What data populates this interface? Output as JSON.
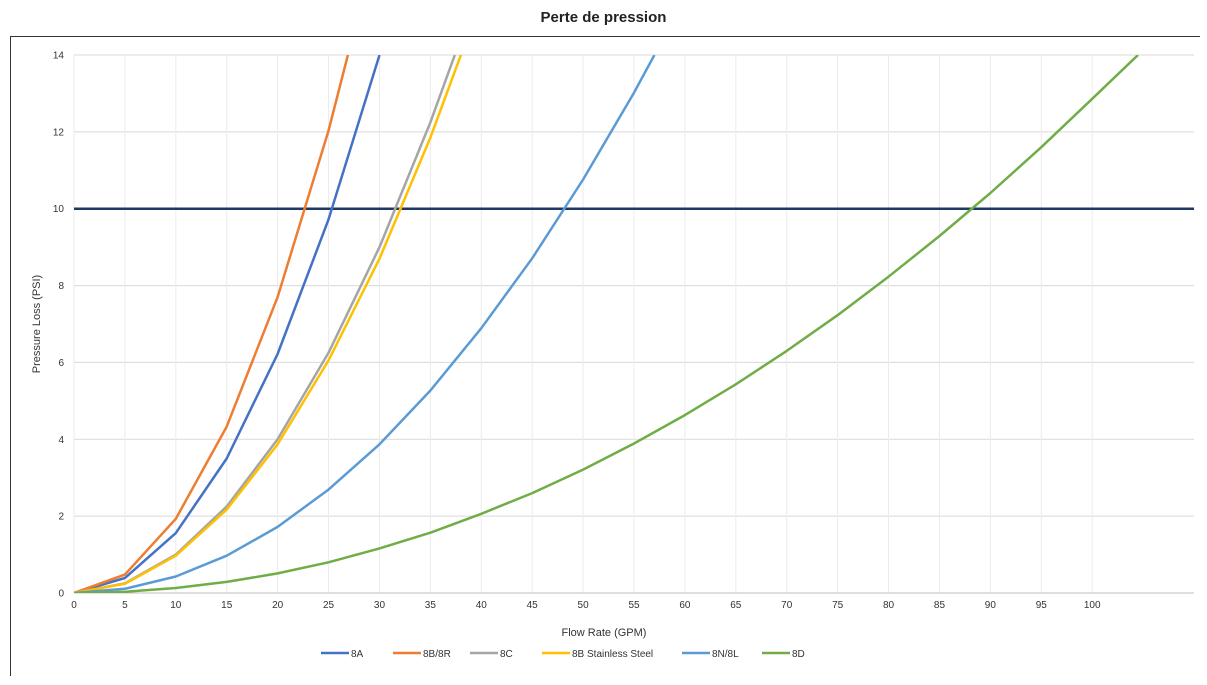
{
  "chart_data": {
    "type": "line",
    "title": "Perte de pression",
    "xlabel": "Flow Rate (GPM)",
    "ylabel": "Pressure Loss (PSI)",
    "xlim": [
      0,
      110
    ],
    "ylim": [
      0,
      14
    ],
    "x_ticks": [
      0,
      5,
      10,
      15,
      20,
      25,
      30,
      35,
      40,
      45,
      50,
      55,
      60,
      65,
      70,
      75,
      80,
      85,
      90,
      95,
      100
    ],
    "y_ticks": [
      0,
      2,
      4,
      6,
      8,
      10,
      12,
      14
    ],
    "grid": true,
    "legend_position": "bottom",
    "reference_line": {
      "y": 10,
      "color": "#203864"
    },
    "series": [
      {
        "name": "8A",
        "color": "#4472C4",
        "points": [
          [
            0,
            0
          ],
          [
            5,
            0.39
          ],
          [
            10,
            1.56
          ],
          [
            15,
            3.5
          ],
          [
            20,
            6.22
          ],
          [
            25,
            9.72
          ],
          [
            30,
            14
          ]
        ]
      },
      {
        "name": "8B/8R",
        "color": "#ED7D31",
        "points": [
          [
            0,
            0
          ],
          [
            5,
            0.48
          ],
          [
            10,
            1.93
          ],
          [
            15,
            4.33
          ],
          [
            20,
            7.7
          ],
          [
            25,
            12.03
          ],
          [
            26.9,
            14
          ]
        ]
      },
      {
        "name": "8C",
        "color": "#A5A5A5",
        "points": [
          [
            0,
            0
          ],
          [
            5,
            0.25
          ],
          [
            10,
            1.0
          ],
          [
            15,
            2.25
          ],
          [
            20,
            4.0
          ],
          [
            25,
            6.25
          ],
          [
            30,
            9.0
          ],
          [
            35,
            12.25
          ],
          [
            37.4,
            14
          ]
        ]
      },
      {
        "name": "8B Stainless Steel",
        "color": "#FFC000",
        "points": [
          [
            0,
            0
          ],
          [
            5,
            0.24
          ],
          [
            10,
            0.97
          ],
          [
            15,
            2.17
          ],
          [
            20,
            3.87
          ],
          [
            25,
            6.05
          ],
          [
            30,
            8.7
          ],
          [
            35,
            11.85
          ],
          [
            38.0,
            14
          ]
        ]
      },
      {
        "name": "8N/8L",
        "color": "#5B9BD5",
        "points": [
          [
            0,
            0
          ],
          [
            5,
            0.11
          ],
          [
            10,
            0.43
          ],
          [
            15,
            0.97
          ],
          [
            20,
            1.72
          ],
          [
            25,
            2.69
          ],
          [
            30,
            3.87
          ],
          [
            35,
            5.27
          ],
          [
            40,
            6.89
          ],
          [
            45,
            8.71
          ],
          [
            50,
            10.76
          ],
          [
            55,
            13.02
          ],
          [
            57.0,
            14
          ]
        ]
      },
      {
        "name": "8D",
        "color": "#70AD47",
        "points": [
          [
            0,
            0
          ],
          [
            5,
            0.03
          ],
          [
            10,
            0.13
          ],
          [
            15,
            0.29
          ],
          [
            20,
            0.51
          ],
          [
            25,
            0.8
          ],
          [
            30,
            1.16
          ],
          [
            35,
            1.57
          ],
          [
            40,
            2.06
          ],
          [
            45,
            2.6
          ],
          [
            50,
            3.21
          ],
          [
            55,
            3.89
          ],
          [
            60,
            4.63
          ],
          [
            65,
            5.43
          ],
          [
            70,
            6.3
          ],
          [
            75,
            7.23
          ],
          [
            80,
            8.23
          ],
          [
            85,
            9.29
          ],
          [
            90,
            10.41
          ],
          [
            95,
            11.6
          ],
          [
            100,
            12.86
          ],
          [
            104.5,
            14
          ]
        ]
      }
    ]
  }
}
